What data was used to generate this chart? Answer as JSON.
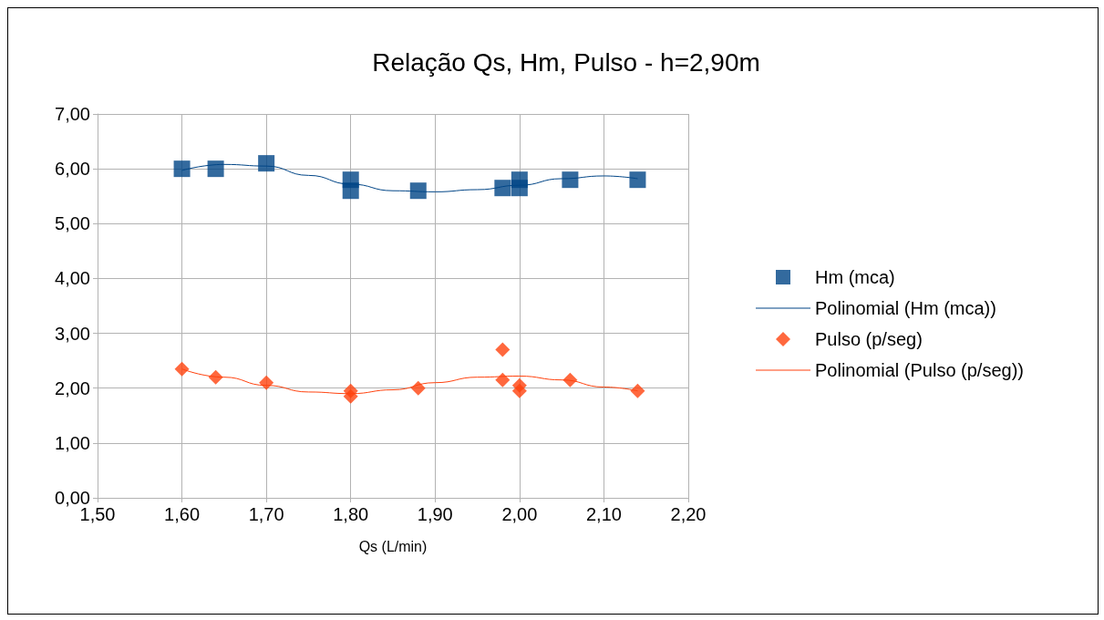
{
  "chart_data": {
    "type": "scatter",
    "title": "Relação Qs, Hm, Pulso - h=2,90m",
    "xlabel": "Qs (L/min)",
    "xlim": [
      1.5,
      2.2
    ],
    "xticks": [
      {
        "value": 1.5,
        "label": "1,50"
      },
      {
        "value": 1.6,
        "label": "1,60"
      },
      {
        "value": 1.7,
        "label": "1,70"
      },
      {
        "value": 1.8,
        "label": "1,80"
      },
      {
        "value": 1.9,
        "label": "1,90"
      },
      {
        "value": 2.0,
        "label": "2,00"
      },
      {
        "value": 2.1,
        "label": "2,10"
      },
      {
        "value": 2.2,
        "label": "2,20"
      }
    ],
    "ylim": [
      0,
      7
    ],
    "yticks": [
      {
        "value": 0,
        "label": "0,00"
      },
      {
        "value": 1,
        "label": "1,00"
      },
      {
        "value": 2,
        "label": "2,00"
      },
      {
        "value": 3,
        "label": "3,00"
      },
      {
        "value": 4,
        "label": "4,00"
      },
      {
        "value": 5,
        "label": "5,00"
      },
      {
        "value": 6,
        "label": "6,00"
      },
      {
        "value": 7,
        "label": "7,00"
      }
    ],
    "grid": true,
    "legend": "right",
    "series": [
      {
        "name": "Hm (mca)",
        "type": "scatter",
        "marker": "square",
        "color": "#004586",
        "x": [
          1.6,
          1.64,
          1.7,
          1.8,
          1.8,
          1.88,
          1.98,
          2.0,
          2.0,
          2.06,
          2.14
        ],
        "values": [
          6.0,
          6.0,
          6.1,
          5.8,
          5.6,
          5.6,
          5.65,
          5.8,
          5.65,
          5.8,
          5.8
        ]
      },
      {
        "name": "Polinomial (Hm (mca))",
        "type": "line",
        "marker": "none",
        "color": "#004586",
        "x": [
          1.6,
          1.65,
          1.7,
          1.75,
          1.8,
          1.85,
          1.9,
          1.95,
          2.0,
          2.05,
          2.1,
          2.14
        ],
        "values": [
          5.97,
          6.08,
          6.05,
          5.88,
          5.72,
          5.6,
          5.58,
          5.62,
          5.7,
          5.82,
          5.87,
          5.82
        ]
      },
      {
        "name": "Pulso (p/seg)",
        "type": "scatter",
        "marker": "diamond",
        "color": "#ff420e",
        "x": [
          1.6,
          1.64,
          1.7,
          1.8,
          1.8,
          1.88,
          1.98,
          1.98,
          2.0,
          2.0,
          2.06,
          2.14
        ],
        "values": [
          2.35,
          2.2,
          2.1,
          1.95,
          1.85,
          2.0,
          2.7,
          2.15,
          2.05,
          1.95,
          2.15,
          1.95
        ]
      },
      {
        "name": "Polinomial (Pulso (p/seg))",
        "type": "line",
        "marker": "none",
        "color": "#ff420e",
        "x": [
          1.6,
          1.65,
          1.7,
          1.75,
          1.8,
          1.85,
          1.9,
          1.95,
          2.0,
          2.05,
          2.1,
          2.14
        ],
        "values": [
          2.35,
          2.2,
          2.05,
          1.93,
          1.9,
          1.97,
          2.1,
          2.2,
          2.22,
          2.15,
          2.02,
          1.95
        ]
      }
    ]
  }
}
